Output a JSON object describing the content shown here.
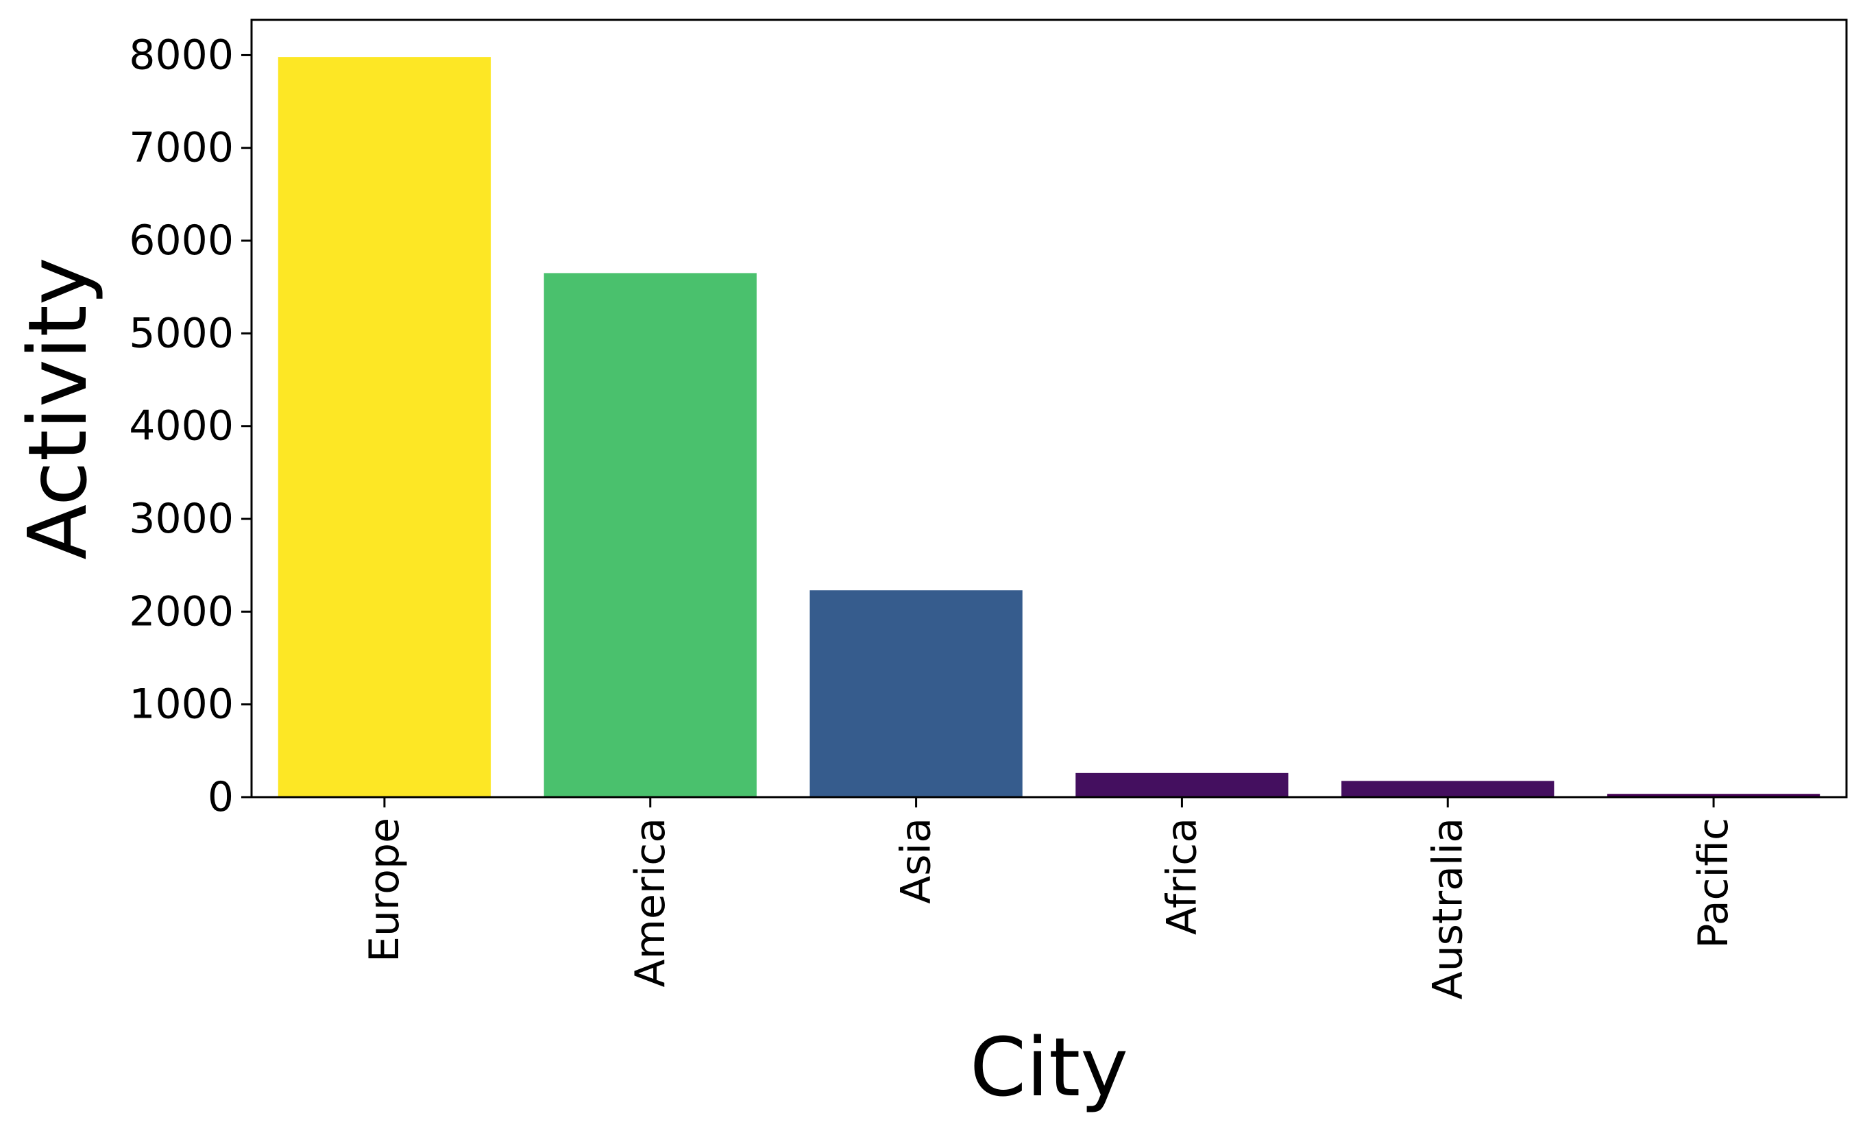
{
  "chart_data": {
    "type": "bar",
    "xlabel": "City",
    "ylabel": "Activity",
    "categories": [
      "Europe",
      "America",
      "Asia",
      "Africa",
      "Australia",
      "Pacific"
    ],
    "values": [
      7980,
      5650,
      2230,
      260,
      175,
      35
    ],
    "colors": [
      "#fde725",
      "#4ac16d",
      "#365c8d",
      "#440f5f",
      "#440f5f",
      "#440154"
    ],
    "ylim": [
      0,
      8380
    ],
    "yticks": [
      0,
      1000,
      2000,
      3000,
      4000,
      5000,
      6000,
      7000,
      8000
    ],
    "ytick_labels": [
      "0",
      "1000",
      "2000",
      "3000",
      "4000",
      "5000",
      "6000",
      "7000",
      "8000"
    ],
    "grid": false,
    "legend": false
  }
}
